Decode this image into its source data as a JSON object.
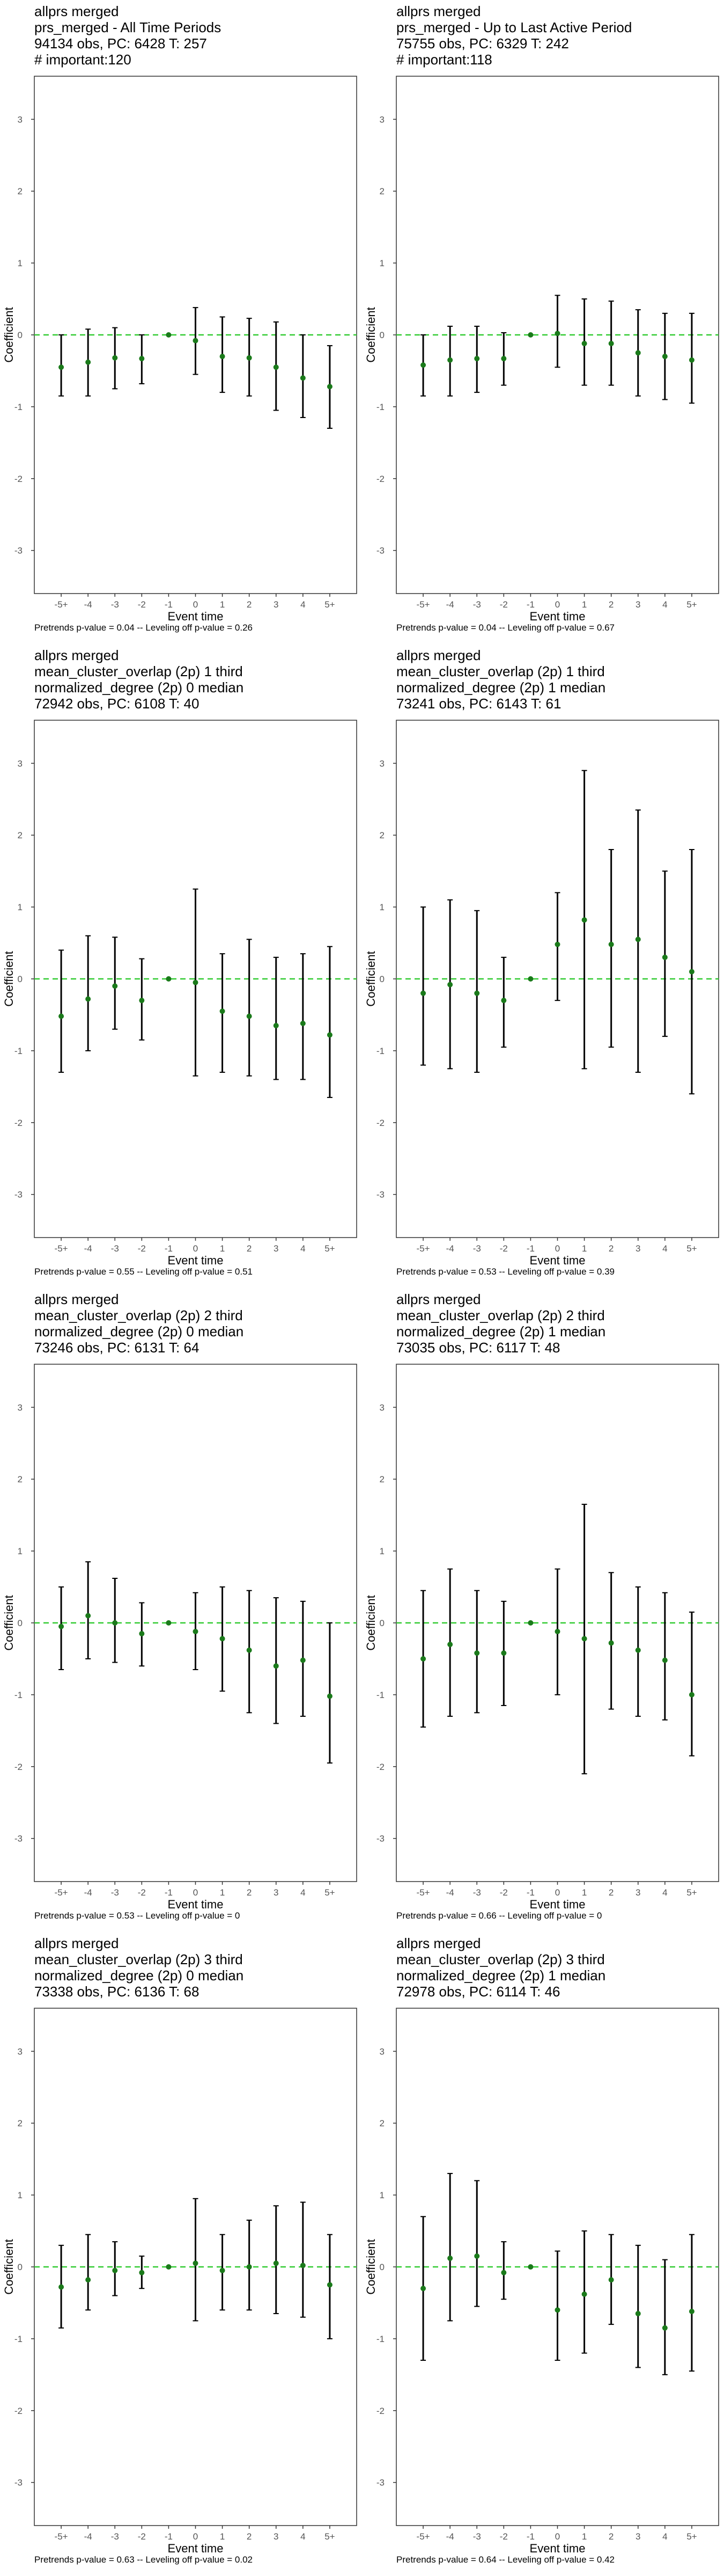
{
  "chart_data": [
    {
      "type": "scatter",
      "title_lines": [
        "allprs merged",
        "prs_merged - All Time Periods",
        "94134 obs, PC: 6428 T: 257",
        "# important:120"
      ],
      "xlabel": "Event time",
      "ylabel": "Coefficient",
      "x": [
        "-5+",
        "-4",
        "-3",
        "-2",
        "-1",
        "0",
        "1",
        "2",
        "3",
        "4",
        "5+"
      ],
      "ylim": [
        -3.6,
        3.6
      ],
      "yticks": [
        -3,
        -2,
        -1,
        0,
        1,
        2,
        3
      ],
      "reference_line": 0,
      "estimates": [
        -0.45,
        -0.38,
        -0.32,
        -0.33,
        0,
        -0.08,
        -0.3,
        -0.32,
        -0.45,
        -0.6,
        -0.72
      ],
      "ci_low": [
        -0.85,
        -0.85,
        -0.75,
        -0.68,
        0,
        -0.55,
        -0.8,
        -0.85,
        -1.05,
        -1.15,
        -1.3
      ],
      "ci_high": [
        0.0,
        0.08,
        0.1,
        0.0,
        0,
        0.38,
        0.25,
        0.23,
        0.18,
        0.0,
        -0.15
      ],
      "footer": "Pretrends p-value = 0.04 -- Leveling off p-value = 0.26"
    },
    {
      "type": "scatter",
      "title_lines": [
        "allprs merged",
        "prs_merged - Up to Last Active Period",
        "75755 obs, PC: 6329 T: 242",
        "# important:118"
      ],
      "xlabel": "Event time",
      "ylabel": "Coefficient",
      "x": [
        "-5+",
        "-4",
        "-3",
        "-2",
        "-1",
        "0",
        "1",
        "2",
        "3",
        "4",
        "5+"
      ],
      "ylim": [
        -3.6,
        3.6
      ],
      "yticks": [
        -3,
        -2,
        -1,
        0,
        1,
        2,
        3
      ],
      "reference_line": 0,
      "estimates": [
        -0.42,
        -0.35,
        -0.33,
        -0.33,
        0,
        0.02,
        -0.12,
        -0.12,
        -0.25,
        -0.3,
        -0.35
      ],
      "ci_low": [
        -0.85,
        -0.85,
        -0.8,
        -0.7,
        0,
        -0.45,
        -0.7,
        -0.7,
        -0.85,
        -0.9,
        -0.95
      ],
      "ci_high": [
        0.0,
        0.12,
        0.12,
        0.03,
        0,
        0.55,
        0.5,
        0.47,
        0.35,
        0.3,
        0.3
      ],
      "footer": "Pretrends p-value = 0.04 -- Leveling off p-value = 0.67"
    },
    {
      "type": "scatter",
      "title_lines": [
        "allprs merged",
        "mean_cluster_overlap (2p) 1 third",
        "normalized_degree (2p) 0 median",
        "72942 obs, PC: 6108 T: 40"
      ],
      "xlabel": "Event time",
      "ylabel": "Coefficient",
      "x": [
        "-5+",
        "-4",
        "-3",
        "-2",
        "-1",
        "0",
        "1",
        "2",
        "3",
        "4",
        "5+"
      ],
      "ylim": [
        -3.6,
        3.6
      ],
      "yticks": [
        -3,
        -2,
        -1,
        0,
        1,
        2,
        3
      ],
      "reference_line": 0,
      "estimates": [
        -0.52,
        -0.28,
        -0.1,
        -0.3,
        0,
        -0.05,
        -0.45,
        -0.52,
        -0.65,
        -0.62,
        -0.78
      ],
      "ci_low": [
        -1.3,
        -1.0,
        -0.7,
        -0.85,
        0,
        -1.35,
        -1.3,
        -1.35,
        -1.4,
        -1.4,
        -1.65
      ],
      "ci_high": [
        0.4,
        0.6,
        0.58,
        0.28,
        0,
        1.25,
        0.35,
        0.55,
        0.3,
        0.35,
        0.45
      ],
      "footer": "Pretrends p-value = 0.55 -- Leveling off p-value = 0.51"
    },
    {
      "type": "scatter",
      "title_lines": [
        "allprs merged",
        "mean_cluster_overlap (2p) 1 third",
        "normalized_degree (2p) 1 median",
        "73241 obs, PC: 6143 T: 61"
      ],
      "xlabel": "Event time",
      "ylabel": "Coefficient",
      "x": [
        "-5+",
        "-4",
        "-3",
        "-2",
        "-1",
        "0",
        "1",
        "2",
        "3",
        "4",
        "5+"
      ],
      "ylim": [
        -3.6,
        3.6
      ],
      "yticks": [
        -3,
        -2,
        -1,
        0,
        1,
        2,
        3
      ],
      "reference_line": 0,
      "estimates": [
        -0.2,
        -0.08,
        -0.2,
        -0.3,
        0,
        0.48,
        0.82,
        0.48,
        0.55,
        0.3,
        0.1
      ],
      "ci_low": [
        -1.2,
        -1.25,
        -1.3,
        -0.95,
        0,
        -0.3,
        -1.25,
        -0.95,
        -1.3,
        -0.8,
        -1.6
      ],
      "ci_high": [
        1.0,
        1.1,
        0.95,
        0.3,
        0,
        1.2,
        2.9,
        1.8,
        2.35,
        1.5,
        1.8
      ],
      "footer": "Pretrends p-value = 0.53 -- Leveling off p-value = 0.39"
    },
    {
      "type": "scatter",
      "title_lines": [
        "allprs merged",
        "mean_cluster_overlap (2p) 2 third",
        "normalized_degree (2p) 0 median",
        "73246 obs, PC: 6131 T: 64"
      ],
      "xlabel": "Event time",
      "ylabel": "Coefficient",
      "x": [
        "-5+",
        "-4",
        "-3",
        "-2",
        "-1",
        "0",
        "1",
        "2",
        "3",
        "4",
        "5+"
      ],
      "ylim": [
        -3.6,
        3.6
      ],
      "yticks": [
        -3,
        -2,
        -1,
        0,
        1,
        2,
        3
      ],
      "reference_line": 0,
      "estimates": [
        -0.05,
        0.1,
        0.0,
        -0.15,
        0,
        -0.12,
        -0.22,
        -0.38,
        -0.6,
        -0.52,
        -1.02
      ],
      "ci_low": [
        -0.65,
        -0.5,
        -0.55,
        -0.6,
        0,
        -0.65,
        -0.95,
        -1.25,
        -1.4,
        -1.3,
        -1.95
      ],
      "ci_high": [
        0.5,
        0.85,
        0.62,
        0.28,
        0,
        0.42,
        0.5,
        0.45,
        0.35,
        0.3,
        0.0
      ],
      "footer": "Pretrends p-value = 0.53 -- Leveling off p-value = 0"
    },
    {
      "type": "scatter",
      "title_lines": [
        "allprs merged",
        "mean_cluster_overlap (2p) 2 third",
        "normalized_degree (2p) 1 median",
        "73035 obs, PC: 6117 T: 48"
      ],
      "xlabel": "Event time",
      "ylabel": "Coefficient",
      "x": [
        "-5+",
        "-4",
        "-3",
        "-2",
        "-1",
        "0",
        "1",
        "2",
        "3",
        "4",
        "5+"
      ],
      "ylim": [
        -3.6,
        3.6
      ],
      "yticks": [
        -3,
        -2,
        -1,
        0,
        1,
        2,
        3
      ],
      "reference_line": 0,
      "estimates": [
        -0.5,
        -0.3,
        -0.42,
        -0.42,
        0,
        -0.12,
        -0.22,
        -0.28,
        -0.38,
        -0.52,
        -1.0
      ],
      "ci_low": [
        -1.45,
        -1.3,
        -1.25,
        -1.15,
        0,
        -1.0,
        -2.1,
        -1.2,
        -1.3,
        -1.35,
        -1.85
      ],
      "ci_high": [
        0.45,
        0.75,
        0.45,
        0.3,
        0,
        0.75,
        1.65,
        0.7,
        0.5,
        0.42,
        0.15
      ],
      "footer": "Pretrends p-value = 0.66 -- Leveling off p-value = 0"
    },
    {
      "type": "scatter",
      "title_lines": [
        "allprs merged",
        "mean_cluster_overlap (2p) 3 third",
        "normalized_degree (2p) 0 median",
        "73338 obs, PC: 6136 T: 68"
      ],
      "xlabel": "Event time",
      "ylabel": "Coefficient",
      "x": [
        "-5+",
        "-4",
        "-3",
        "-2",
        "-1",
        "0",
        "1",
        "2",
        "3",
        "4",
        "5+"
      ],
      "ylim": [
        -3.6,
        3.6
      ],
      "yticks": [
        -3,
        -2,
        -1,
        0,
        1,
        2,
        3
      ],
      "reference_line": 0,
      "estimates": [
        -0.28,
        -0.18,
        -0.05,
        -0.08,
        0,
        0.05,
        -0.05,
        0.0,
        0.05,
        0.02,
        -0.25
      ],
      "ci_low": [
        -0.85,
        -0.6,
        -0.4,
        -0.3,
        0,
        -0.75,
        -0.6,
        -0.6,
        -0.65,
        -0.7,
        -1.0
      ],
      "ci_high": [
        0.3,
        0.45,
        0.35,
        0.15,
        0,
        0.95,
        0.45,
        0.65,
        0.85,
        0.9,
        0.45
      ],
      "footer": "Pretrends p-value = 0.63 -- Leveling off p-value = 0.02"
    },
    {
      "type": "scatter",
      "title_lines": [
        "allprs merged",
        "mean_cluster_overlap (2p) 3 third",
        "normalized_degree (2p) 1 median",
        "72978 obs, PC: 6114 T: 46"
      ],
      "xlabel": "Event time",
      "ylabel": "Coefficient",
      "x": [
        "-5+",
        "-4",
        "-3",
        "-2",
        "-1",
        "0",
        "1",
        "2",
        "3",
        "4",
        "5+"
      ],
      "ylim": [
        -3.6,
        3.6
      ],
      "yticks": [
        -3,
        -2,
        -1,
        0,
        1,
        2,
        3
      ],
      "reference_line": 0,
      "estimates": [
        -0.3,
        0.12,
        0.15,
        -0.08,
        0,
        -0.6,
        -0.38,
        -0.18,
        -0.65,
        -0.85,
        -0.62
      ],
      "ci_low": [
        -1.3,
        -0.75,
        -0.55,
        -0.45,
        0,
        -1.3,
        -1.2,
        -0.8,
        -1.4,
        -1.5,
        -1.45
      ],
      "ci_high": [
        0.7,
        1.3,
        1.2,
        0.35,
        0,
        0.22,
        0.5,
        0.45,
        0.3,
        0.1,
        0.45
      ],
      "footer": "Pretrends p-value = 0.64 -- Leveling off p-value = 0.42"
    }
  ]
}
